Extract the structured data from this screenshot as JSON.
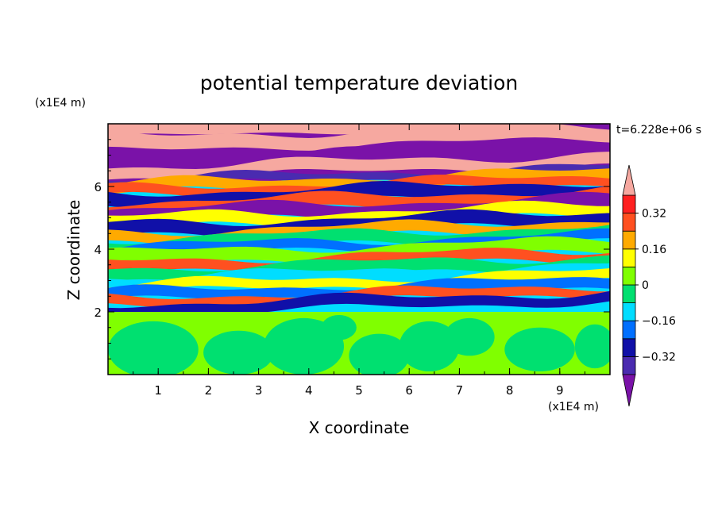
{
  "chart_data": {
    "type": "heatmap",
    "title": "potential temperature deviation",
    "xlabel": "X coordinate",
    "ylabel": "Z coordinate",
    "x_unit": "(x1E4 m)",
    "y_unit": "(x1E4 m)",
    "time_label": "t=6.228e+06 s",
    "xlim": [
      0,
      10
    ],
    "ylim": [
      0,
      8
    ],
    "x_ticks": [
      1,
      2,
      3,
      4,
      5,
      6,
      7,
      8,
      9
    ],
    "x_tick_labels": [
      "1",
      "2",
      "3",
      "4",
      "5",
      "6",
      "7",
      "8",
      "9"
    ],
    "y_ticks": [
      2,
      4,
      6
    ],
    "y_tick_labels": [
      "2",
      "4",
      "6"
    ],
    "colorbar": {
      "levels": [
        -0.4,
        -0.32,
        -0.24,
        -0.16,
        -0.08,
        0,
        0.08,
        0.16,
        0.24,
        0.32,
        0.4
      ],
      "tick_values": [
        -0.32,
        -0.16,
        0,
        0.16,
        0.32
      ],
      "tick_labels": [
        "−0.32",
        "−0.16",
        "0",
        "0.16",
        "0.32"
      ],
      "under_color": "#7a12a8",
      "over_color": "#f6a8a0",
      "colors": [
        "#4a2bb0",
        "#1010a8",
        "#0070ff",
        "#00ddff",
        "#00e070",
        "#80ff00",
        "#ffff00",
        "#ffaa00",
        "#ff5020",
        "#ff2020"
      ]
    }
  }
}
